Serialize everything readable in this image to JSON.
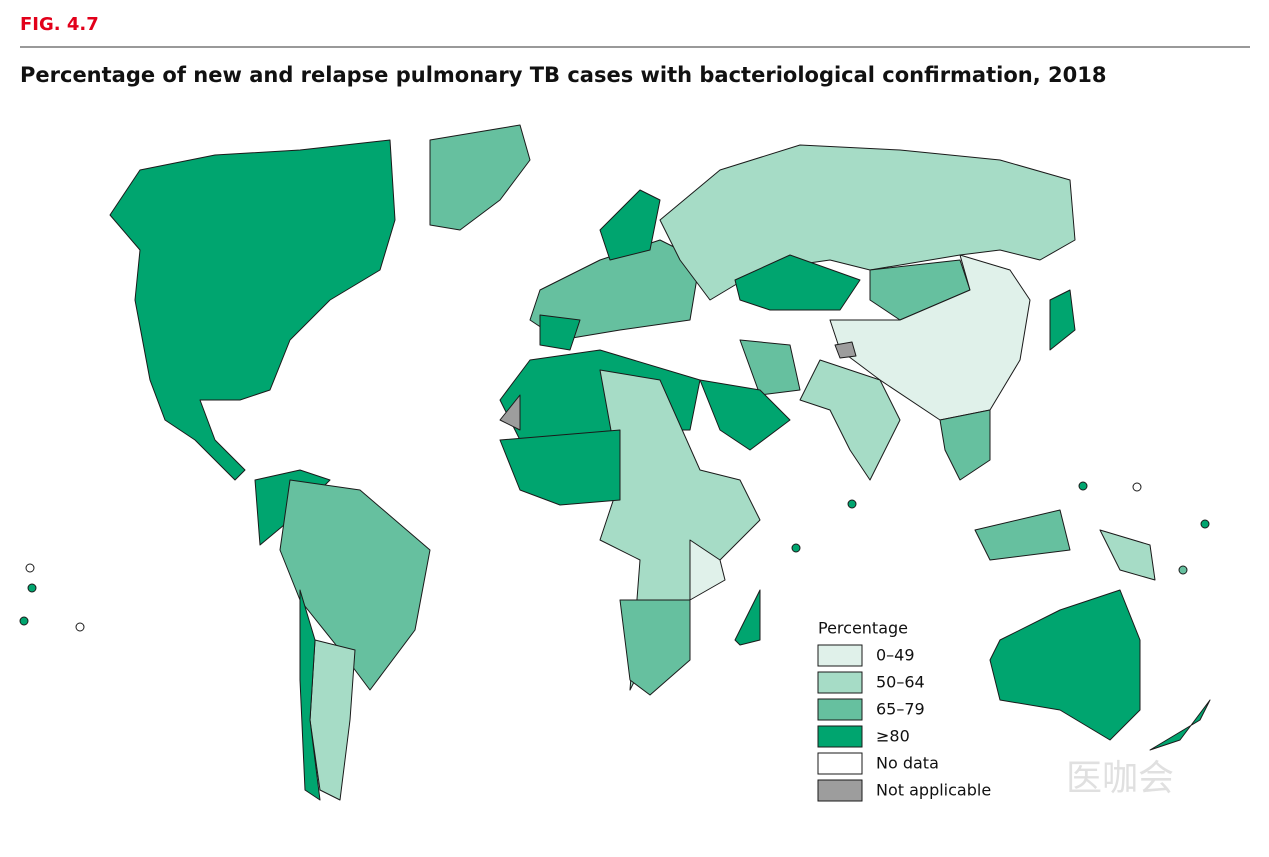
{
  "figure": {
    "label": "FIG. 4.7",
    "title": "Percentage of new and relapse pulmonary TB cases with bacteriological confirmation, 2018"
  },
  "legend": {
    "title": "Percentage",
    "items": [
      {
        "label": "0–49",
        "color": "#e0f1ea"
      },
      {
        "label": "50–64",
        "color": "#a6dcc6"
      },
      {
        "label": "65–79",
        "color": "#66c09f"
      },
      {
        "label": "≥80",
        "color": "#00a56f"
      },
      {
        "label": "No data",
        "color": "#ffffff"
      },
      {
        "label": "Not applicable",
        "color": "#9d9d9d"
      }
    ]
  },
  "watermark": "医咖会"
}
